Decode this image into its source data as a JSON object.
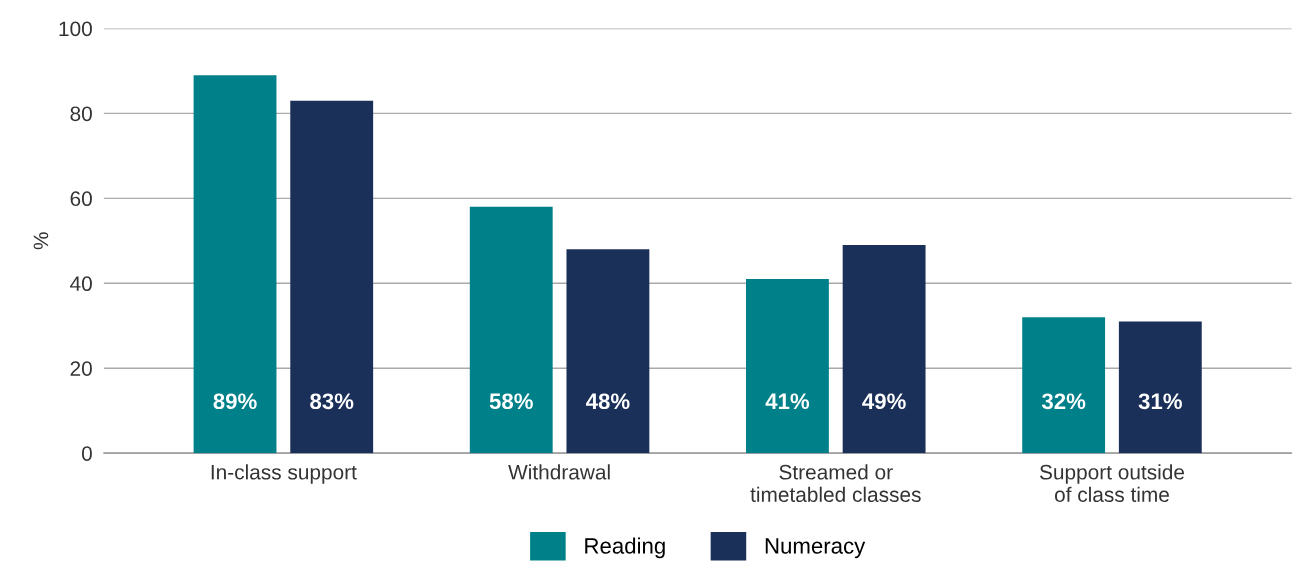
{
  "chart_data": {
    "type": "bar",
    "ylabel": "%",
    "categories": [
      "In-class support",
      "Withdrawal",
      "Streamed or\ntimetabled classes",
      "Support outside\nof class time"
    ],
    "series": [
      {
        "name": "Reading",
        "color": "#00818a",
        "values": [
          89,
          58,
          41,
          32
        ],
        "value_labels": [
          "89%",
          "58%",
          "41%",
          "32%"
        ]
      },
      {
        "name": "Numeracy",
        "color": "#1b3058",
        "values": [
          83,
          48,
          49,
          31
        ],
        "value_labels": [
          "83%",
          "48%",
          "49%",
          "31%"
        ]
      }
    ],
    "ylim": [
      0,
      100
    ],
    "yticks": [
      0,
      20,
      40,
      60,
      80,
      100
    ],
    "grid": "y",
    "legend": "bottom"
  }
}
